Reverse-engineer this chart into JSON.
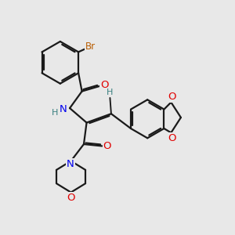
{
  "bg_color": "#e8e8e8",
  "bond_color": "#1a1a1a",
  "bond_width": 1.6,
  "dbo": 0.06,
  "atom_colors": {
    "O": "#e00000",
    "N": "#0000ee",
    "Br": "#b85c00",
    "H": "#3a8080",
    "C": "#1a1a1a"
  },
  "font_size": 8.5,
  "figsize": [
    3.0,
    3.0
  ],
  "dpi": 100
}
